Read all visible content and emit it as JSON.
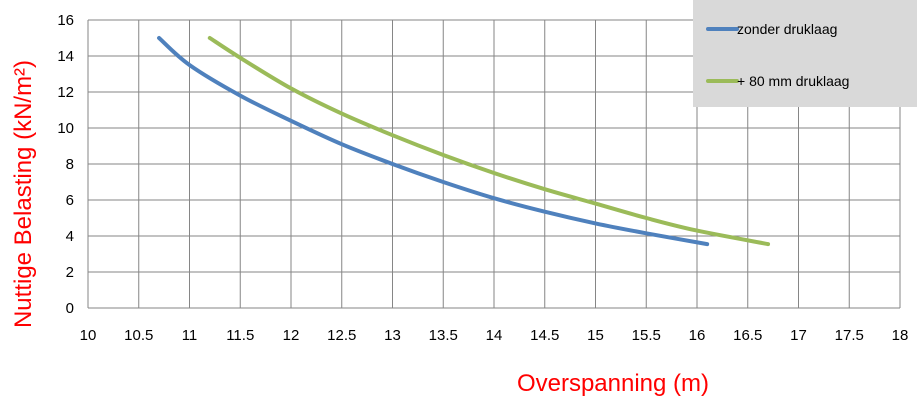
{
  "chart_data": {
    "type": "line",
    "title": "",
    "xlabel": "Overspanning (m)",
    "ylabel": "Nuttige Belasting (kN/m²)",
    "xlim": [
      10,
      18
    ],
    "ylim": [
      0,
      16
    ],
    "x_ticks": [
      "10",
      "10.5",
      "11",
      "11.5",
      "12",
      "12.5",
      "13",
      "13.5",
      "14",
      "14.5",
      "15",
      "15.5",
      "16",
      "16.5",
      "17",
      "17.5",
      "18"
    ],
    "y_ticks": [
      "0",
      "2",
      "4",
      "6",
      "8",
      "10",
      "12",
      "14",
      "16"
    ],
    "grid": true,
    "legend_position": "top-right",
    "series": [
      {
        "name": "zonder druklaag",
        "color": "#4f81bd",
        "points": [
          [
            10.7,
            15.0
          ],
          [
            11.0,
            13.5
          ],
          [
            11.5,
            11.8
          ],
          [
            12.0,
            10.4
          ],
          [
            12.5,
            9.1
          ],
          [
            13.0,
            8.0
          ],
          [
            13.5,
            7.0
          ],
          [
            14.0,
            6.1
          ],
          [
            14.5,
            5.35
          ],
          [
            15.0,
            4.7
          ],
          [
            15.5,
            4.15
          ],
          [
            16.1,
            3.55
          ]
        ]
      },
      {
        "name": "+ 80 mm druklaag",
        "color": "#9bbb59",
        "points": [
          [
            11.2,
            15.0
          ],
          [
            11.5,
            13.9
          ],
          [
            12.0,
            12.2
          ],
          [
            12.5,
            10.8
          ],
          [
            13.0,
            9.6
          ],
          [
            13.5,
            8.5
          ],
          [
            14.0,
            7.5
          ],
          [
            14.5,
            6.6
          ],
          [
            15.0,
            5.8
          ],
          [
            15.5,
            5.0
          ],
          [
            16.0,
            4.3
          ],
          [
            16.7,
            3.55
          ]
        ]
      }
    ]
  }
}
